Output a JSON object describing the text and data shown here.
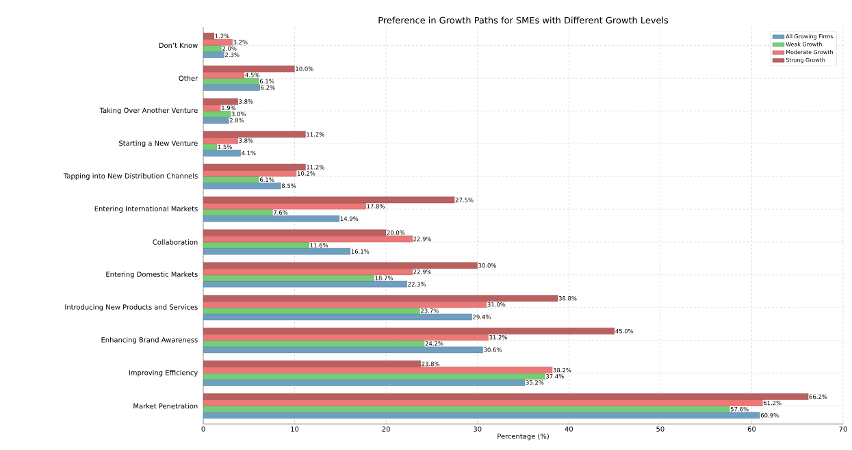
{
  "chart_data": {
    "type": "bar",
    "orientation": "horizontal",
    "title": "Preference in Growth Paths for SMEs with Different Growth Levels",
    "xlabel": "Percentage (%)",
    "categories": [
      "Don’t Know",
      "Other",
      "Taking Over Another Venture",
      "Starting a New Venture",
      "Tapping into New Distribution Channels",
      "Entering International Markets",
      "Collaboration",
      "Entering Domestic Markets",
      "Introducing New Products and Services",
      "Enhancing Brand Awareness",
      "Improving Efficiency",
      "Market Penetration"
    ],
    "series": [
      {
        "name": "All Growing Firms",
        "color": "#6f9fc0",
        "values": [
          2.3,
          6.2,
          2.8,
          4.1,
          8.5,
          14.9,
          16.1,
          22.3,
          29.4,
          30.6,
          35.2,
          60.9
        ],
        "value_labels": [
          "2.3%",
          "6.2%",
          "2.8%",
          "4.1%",
          "8.5%",
          "14.9%",
          "16.1%",
          "22.3%",
          "29.4%",
          "30.6%",
          "35.2%",
          "60.9%"
        ]
      },
      {
        "name": "Weak Growth",
        "color": "#77cc77",
        "values": [
          2.0,
          6.1,
          3.0,
          1.5,
          6.1,
          7.6,
          11.6,
          18.7,
          23.7,
          24.2,
          37.4,
          57.6
        ],
        "value_labels": [
          "2.0%",
          "6.1%",
          "3.0%",
          "1.5%",
          "6.1%",
          "7.6%",
          "11.6%",
          "18.7%",
          "23.7%",
          "24.2%",
          "37.4%",
          "57.6%"
        ]
      },
      {
        "name": "Moderate Growth",
        "color": "#ee7777",
        "values": [
          3.2,
          4.5,
          1.9,
          3.8,
          10.2,
          17.8,
          22.9,
          22.9,
          31.0,
          31.2,
          38.2,
          61.2
        ],
        "value_labels": [
          "3.2%",
          "4.5%",
          "1.9%",
          "3.8%",
          "10.2%",
          "17.8%",
          "22.9%",
          "22.9%",
          "31.0%",
          "31.2%",
          "38.2%",
          "61.2%"
        ]
      },
      {
        "name": "Strong Growth",
        "color": "#bb6060",
        "values": [
          1.2,
          10.0,
          3.8,
          11.2,
          11.2,
          27.5,
          20.0,
          30.0,
          38.8,
          45.0,
          23.8,
          66.2
        ],
        "value_labels": [
          "1.2%",
          "10.0%",
          "3.8%",
          "11.2%",
          "11.2%",
          "27.5%",
          "20.0%",
          "30.0%",
          "38.8%",
          "45.0%",
          "23.8%",
          "66.2%"
        ]
      }
    ],
    "xlim": [
      0,
      70
    ],
    "xticks": [
      0,
      10,
      20,
      30,
      40,
      50,
      60,
      70
    ],
    "grid": true,
    "legend": "top right"
  }
}
